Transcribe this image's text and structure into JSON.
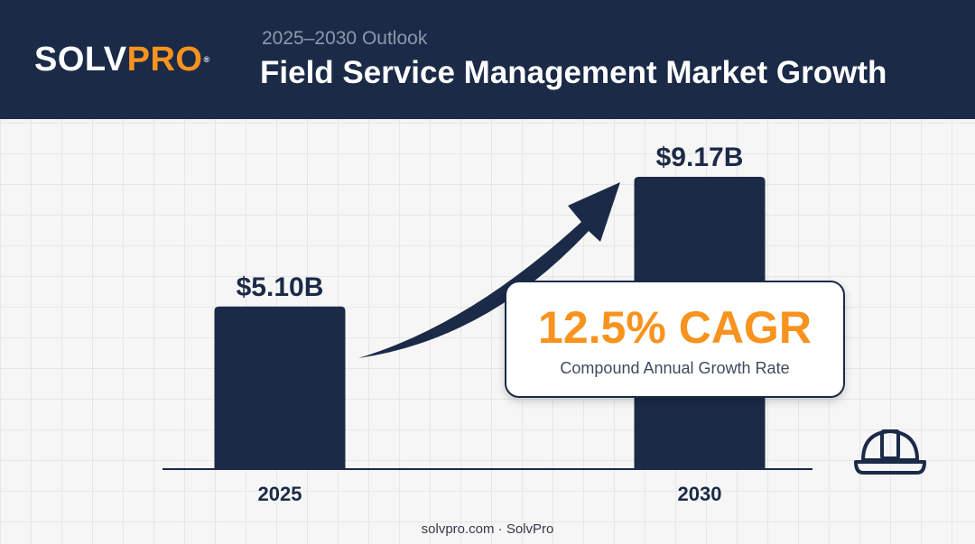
{
  "header": {
    "brand_part1": "SOLV",
    "brand_part2": "PRO",
    "registered": "®",
    "subtitle": "2025–2030 Outlook",
    "title": "Field Service Management Market Growth"
  },
  "chart_data": {
    "type": "bar",
    "categories": [
      "2025",
      "2030"
    ],
    "values": [
      5.1,
      9.17
    ],
    "value_labels": [
      "$5.10B",
      "$9.17B"
    ],
    "title": "Field Service Management Market Growth",
    "xlabel": "",
    "ylabel": "",
    "ylim": [
      0,
      9.17
    ],
    "grid": false
  },
  "callout": {
    "value": "12.5% CAGR",
    "label": "Compound Annual Growth Rate"
  },
  "footer": {
    "text": "solvpro.com · SolvPro"
  },
  "icons": {
    "helmet": "hard-hat-icon",
    "arrow": "growth-arrow-icon"
  },
  "colors": {
    "navy": "#1b2a47",
    "accent": "#f7931e",
    "background": "#f6f6f6"
  }
}
